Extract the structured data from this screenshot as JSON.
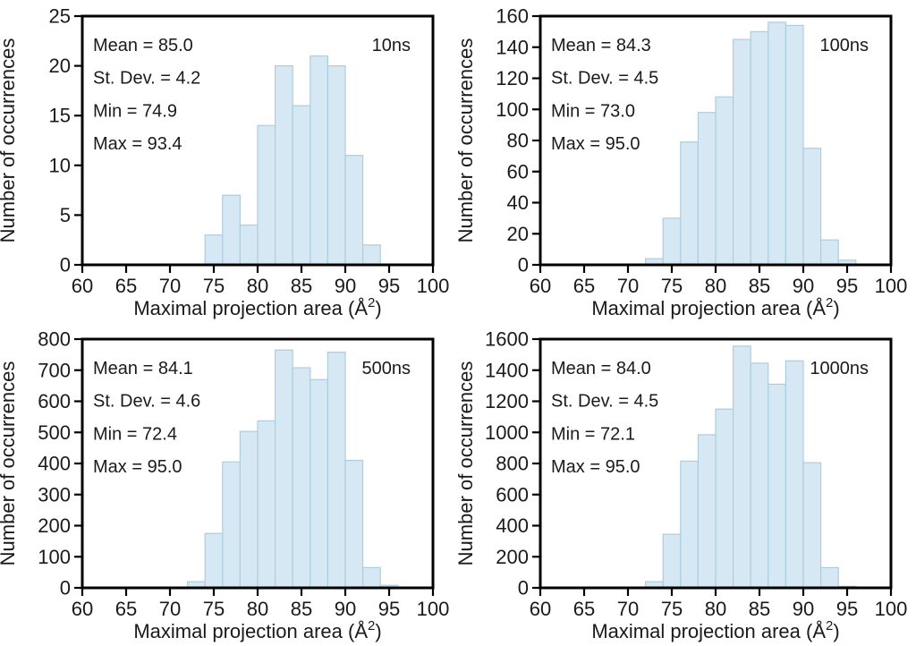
{
  "page": {
    "background": "#ffffff"
  },
  "figure": {
    "xlabel": {
      "text": "Maximal projection area (Å",
      "sup": "2",
      "suffix": ")"
    },
    "ylabel": "Number of occurrences",
    "colors": {
      "bar_fill": "#d5e8f3",
      "bar_stroke": "#aecdde",
      "axis": "#000000",
      "text": "#1a1a1a"
    }
  },
  "chart_data": [
    {
      "type": "bar",
      "subtype": "histogram",
      "panel": "top-left",
      "time_label": "10ns",
      "stats_lines": [
        "Mean = 85.0",
        "St. Dev. = 4.2",
        "Min = 74.9",
        "Max = 93.4"
      ],
      "stats": {
        "mean": 85.0,
        "st_dev": 4.2,
        "min": 74.9,
        "max": 93.4
      },
      "xlabel": "Maximal projection area (Å²)",
      "ylabel": "Number of occurrences",
      "x_range": [
        60,
        100
      ],
      "x_tick_step": 5,
      "y_range": [
        0,
        25
      ],
      "y_tick_step": 5,
      "bin_start": 74,
      "bin_width": 2,
      "bin_edges": [
        74,
        76,
        78,
        80,
        82,
        84,
        86,
        88,
        90,
        92,
        94
      ],
      "counts": [
        3,
        7,
        4,
        14,
        20,
        16,
        21,
        20,
        11,
        2
      ],
      "grid": false,
      "legend": false
    },
    {
      "type": "bar",
      "subtype": "histogram",
      "panel": "top-right",
      "time_label": "100ns",
      "stats_lines": [
        "Mean = 84.3",
        "St. Dev. = 4.5",
        "Min = 73.0",
        "Max = 95.0"
      ],
      "stats": {
        "mean": 84.3,
        "st_dev": 4.5,
        "min": 73.0,
        "max": 95.0
      },
      "xlabel": "Maximal projection area (Å²)",
      "ylabel": "Number of occurrences",
      "x_range": [
        60,
        100
      ],
      "x_tick_step": 5,
      "y_range": [
        0,
        160
      ],
      "y_tick_step": 20,
      "bin_start": 72,
      "bin_width": 2,
      "bin_edges": [
        72,
        74,
        76,
        78,
        80,
        82,
        84,
        86,
        88,
        90,
        92,
        94,
        96
      ],
      "counts": [
        4,
        30,
        79,
        98,
        108,
        145,
        150,
        156,
        154,
        75,
        16,
        3
      ],
      "grid": false,
      "legend": false
    },
    {
      "type": "bar",
      "subtype": "histogram",
      "panel": "bottom-left",
      "time_label": "500ns",
      "stats_lines": [
        "Mean = 84.1",
        "St. Dev. = 4.6",
        "Min = 72.4",
        "Max = 95.0"
      ],
      "stats": {
        "mean": 84.1,
        "st_dev": 4.6,
        "min": 72.4,
        "max": 95.0
      },
      "xlabel": "Maximal projection area (Å²)",
      "ylabel": "Number of occurrences",
      "x_range": [
        60,
        100
      ],
      "x_tick_step": 5,
      "y_range": [
        0,
        800
      ],
      "y_tick_step": 100,
      "bin_start": 72,
      "bin_width": 2,
      "bin_edges": [
        72,
        74,
        76,
        78,
        80,
        82,
        84,
        86,
        88,
        90,
        92,
        94,
        96
      ],
      "counts": [
        20,
        175,
        405,
        503,
        537,
        765,
        708,
        670,
        758,
        410,
        65,
        8
      ],
      "grid": false,
      "legend": false
    },
    {
      "type": "bar",
      "subtype": "histogram",
      "panel": "bottom-right",
      "time_label": "1000ns",
      "stats_lines": [
        "Mean = 84.0",
        "St. Dev. = 4.5",
        "Min = 72.1",
        "Max = 95.0"
      ],
      "stats": {
        "mean": 84.0,
        "st_dev": 4.5,
        "min": 72.1,
        "max": 95.0
      },
      "xlabel": "Maximal projection area (Å²)",
      "ylabel": "Number of occurrences",
      "x_range": [
        60,
        100
      ],
      "x_tick_step": 5,
      "y_range": [
        0,
        1600
      ],
      "y_tick_step": 200,
      "bin_start": 72,
      "bin_width": 2,
      "bin_edges": [
        72,
        74,
        76,
        78,
        80,
        82,
        84,
        86,
        88,
        90,
        92,
        94,
        96
      ],
      "counts": [
        40,
        345,
        815,
        985,
        1150,
        1555,
        1445,
        1310,
        1460,
        805,
        130,
        10
      ],
      "grid": false,
      "legend": false
    }
  ]
}
